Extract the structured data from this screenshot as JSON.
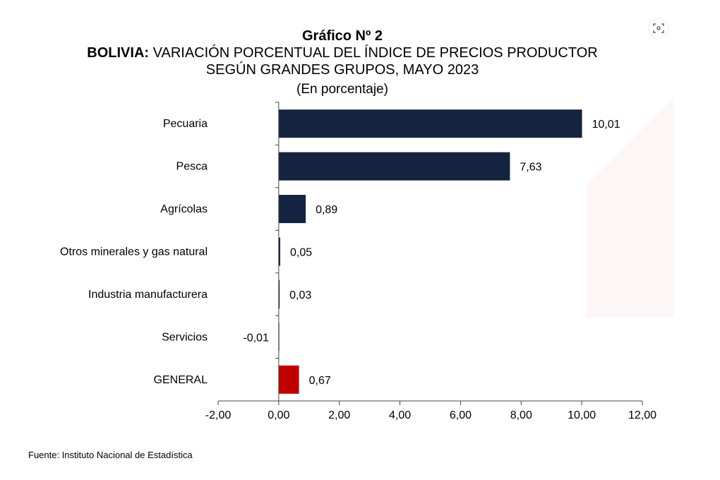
{
  "chart_data": {
    "type": "bar",
    "orientation": "horizontal",
    "title_line1": "Gráfico Nº 2",
    "title_bold": "BOLIVIA:",
    "title_rest": " VARIACIÓN PORCENTUAL DEL ÍNDICE DE PRECIOS PRODUCTOR",
    "title_line3": "SEGÚN GRANDES GRUPOS, MAYO 2023",
    "subtitle": "(En porcentaje)",
    "categories": [
      "Pecuaria",
      "Pesca",
      "Agrícolas",
      "Otros minerales y gas natural",
      "Industria manufacturera",
      "Servicios",
      "GENERAL"
    ],
    "values": [
      10.01,
      7.63,
      0.89,
      0.05,
      0.03,
      -0.01,
      0.67
    ],
    "data_labels": [
      "10,01",
      "7,63",
      "0,89",
      "0,05",
      "0,03",
      "-0,01",
      "0,67"
    ],
    "xlim": [
      -2,
      12
    ],
    "xticks": [
      -2,
      0,
      2,
      4,
      6,
      8,
      10,
      12
    ],
    "xtick_labels": [
      "-2,00",
      "0,00",
      "2,00",
      "4,00",
      "6,00",
      "8,00",
      "10,00",
      "12,00"
    ],
    "grid": false,
    "colors": {
      "default": "#14233f",
      "GENERAL": "#c00000"
    },
    "source": "Fuente: Instituto Nacional de Estadística"
  },
  "toolbar": {
    "scan_icon": "visual-search-icon"
  }
}
